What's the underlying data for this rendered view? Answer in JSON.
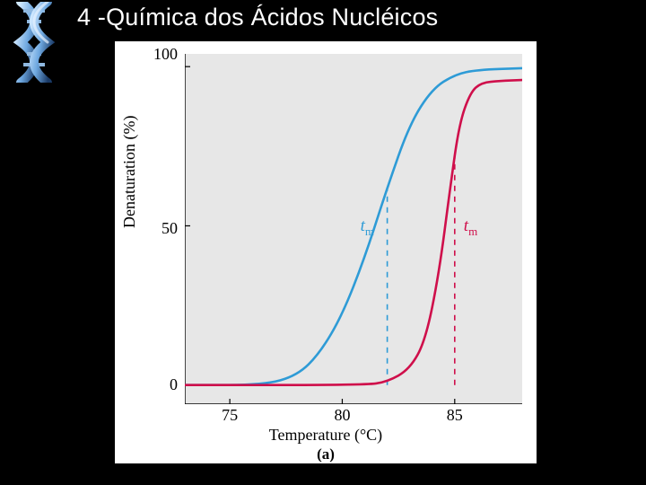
{
  "slide": {
    "title": "4 -Química dos Ácidos Nucléicos",
    "background_color": "#000000"
  },
  "chart": {
    "type": "line",
    "panel_label": "(a)",
    "x": {
      "label": "Temperature (°C)",
      "lim": [
        73,
        88
      ],
      "ticks": [
        75,
        80,
        85
      ],
      "tick_fs": 18,
      "label_fs": 18
    },
    "y": {
      "label": "Denaturation (%)",
      "lim": [
        -6,
        104
      ],
      "ticks": [
        0,
        50,
        100
      ],
      "tick_fs": 18,
      "label_fs": 18
    },
    "plot_bg": "#e7e7e7",
    "outer_bg": "#ffffff",
    "axis_color": "#000000",
    "line_width": 2.6,
    "series": [
      {
        "name": "blue-curve",
        "color": "#2e9bd6",
        "points": [
          [
            73,
            0
          ],
          [
            76.5,
            0
          ],
          [
            78,
            3
          ],
          [
            79,
            10
          ],
          [
            80,
            22
          ],
          [
            81,
            40
          ],
          [
            82,
            62
          ],
          [
            83,
            82
          ],
          [
            84,
            93
          ],
          [
            85,
            97.5
          ],
          [
            86,
            99
          ],
          [
            88,
            99.5
          ]
        ],
        "tm": 82,
        "tm_label": "tₘ",
        "tm_label_color": "#2e9bd6",
        "dash_color": "#2e9bd6"
      },
      {
        "name": "red-curve",
        "color": "#cf0f4b",
        "points": [
          [
            73,
            0
          ],
          [
            81,
            0
          ],
          [
            82,
            1
          ],
          [
            83,
            5
          ],
          [
            83.7,
            14
          ],
          [
            84.3,
            35
          ],
          [
            84.8,
            62
          ],
          [
            85.2,
            82
          ],
          [
            85.7,
            92
          ],
          [
            86.2,
            95
          ],
          [
            87,
            95.5
          ],
          [
            88,
            95.8
          ]
        ],
        "tm": 85,
        "tm_label": "tₘ",
        "tm_label_color": "#cf0f4b",
        "dash_color": "#cf0f4b"
      }
    ],
    "dash_pattern": "6,6",
    "tm_label_fs": 19
  }
}
